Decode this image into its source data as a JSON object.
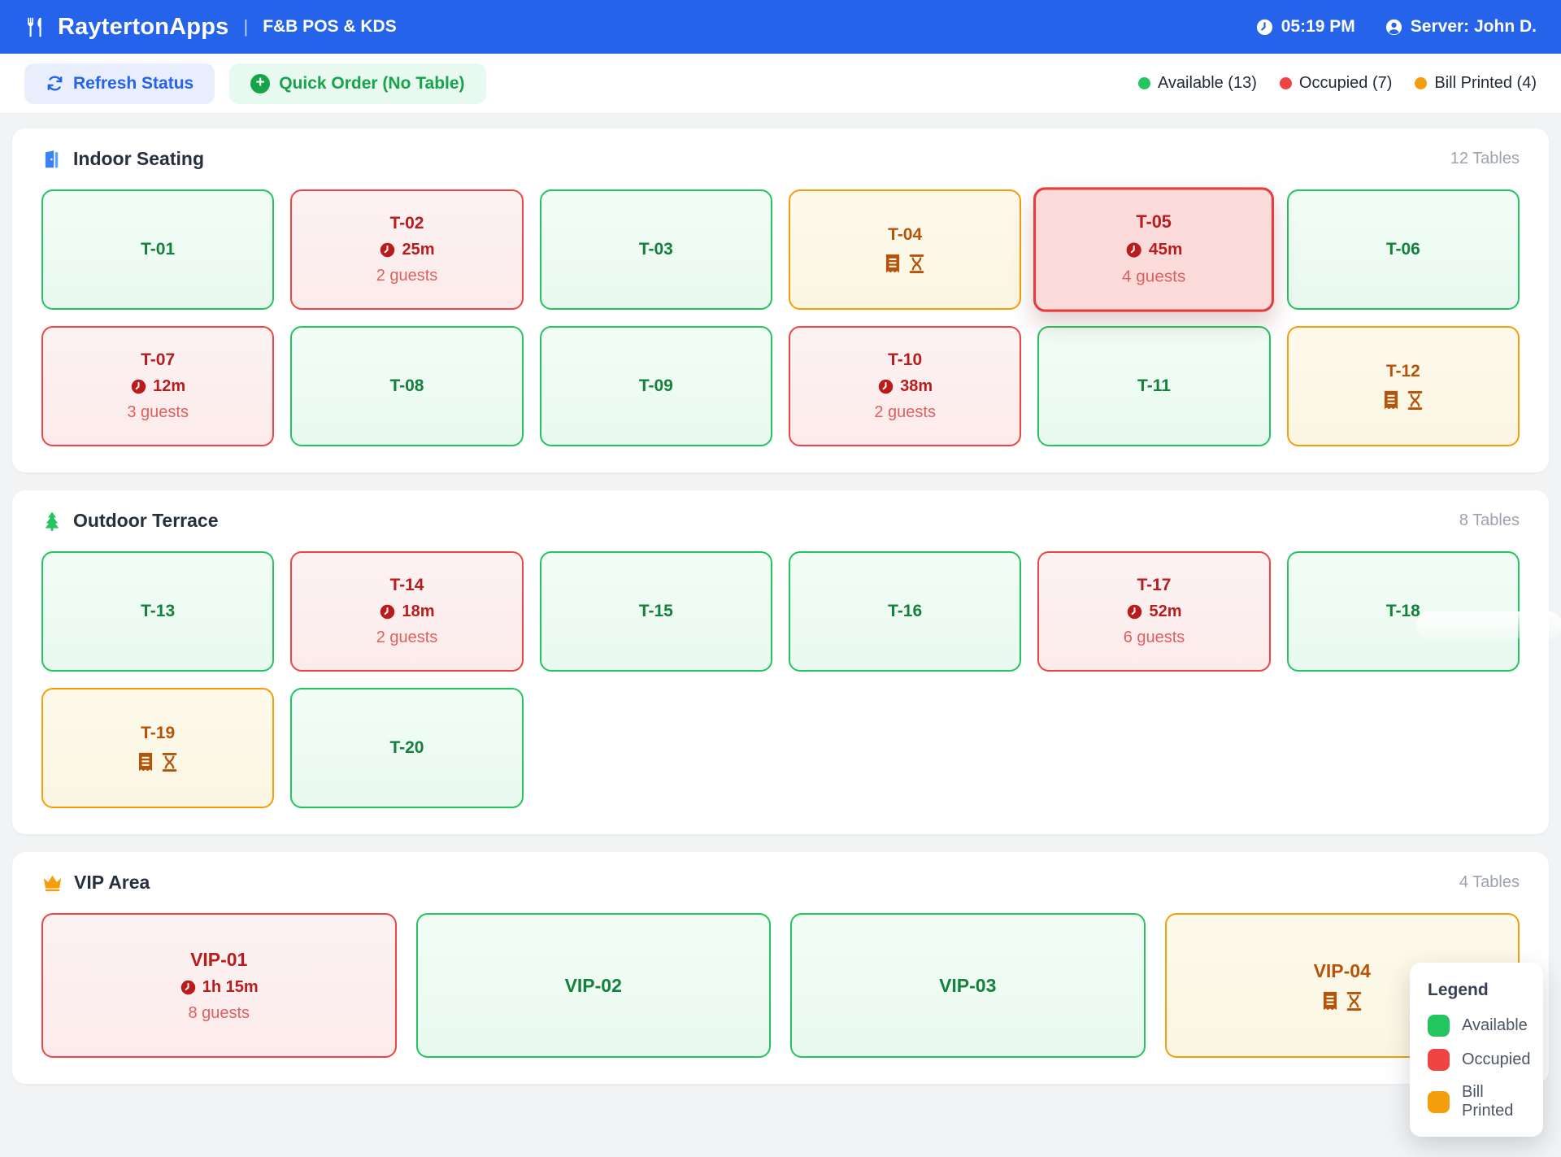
{
  "header": {
    "brand": "RaytertonApps",
    "separator": "|",
    "subtitle": "F&B POS & KDS",
    "time": "05:19 PM",
    "server": "Server: John D."
  },
  "toolbar": {
    "refresh_label": "Refresh Status",
    "quick_order_label": "Quick Order (No Table)",
    "status_legend": [
      {
        "label": "Available (13)",
        "color": "#22c55e"
      },
      {
        "label": "Occupied (7)",
        "color": "#ef4444"
      },
      {
        "label": "Bill Printed (4)",
        "color": "#f59e0b"
      }
    ]
  },
  "sections": [
    {
      "title": "Indoor Seating",
      "icon": "door-icon",
      "count": "12 Tables",
      "tables": [
        {
          "id": "T-01",
          "status": "available"
        },
        {
          "id": "T-02",
          "status": "occupied",
          "time": "25m",
          "guests": "2 guests"
        },
        {
          "id": "T-03",
          "status": "available"
        },
        {
          "id": "T-04",
          "status": "bill"
        },
        {
          "id": "T-05",
          "status": "occupied",
          "time": "45m",
          "guests": "4 guests",
          "selected": true
        },
        {
          "id": "T-06",
          "status": "available"
        },
        {
          "id": "T-07",
          "status": "occupied",
          "time": "12m",
          "guests": "3 guests"
        },
        {
          "id": "T-08",
          "status": "available"
        },
        {
          "id": "T-09",
          "status": "available"
        },
        {
          "id": "T-10",
          "status": "occupied",
          "time": "38m",
          "guests": "2 guests"
        },
        {
          "id": "T-11",
          "status": "available"
        },
        {
          "id": "T-12",
          "status": "bill"
        }
      ]
    },
    {
      "title": "Outdoor Terrace",
      "icon": "tree-icon",
      "count": "8 Tables",
      "tables": [
        {
          "id": "T-13",
          "status": "available"
        },
        {
          "id": "T-14",
          "status": "occupied",
          "time": "18m",
          "guests": "2 guests"
        },
        {
          "id": "T-15",
          "status": "available"
        },
        {
          "id": "T-16",
          "status": "available"
        },
        {
          "id": "T-17",
          "status": "occupied",
          "time": "52m",
          "guests": "6 guests"
        },
        {
          "id": "T-18",
          "status": "available"
        },
        {
          "id": "T-19",
          "status": "bill"
        },
        {
          "id": "T-20",
          "status": "available"
        }
      ]
    },
    {
      "title": "VIP Area",
      "icon": "crown-icon",
      "count": "4 Tables",
      "tables": [
        {
          "id": "VIP-01",
          "status": "occupied",
          "time": "1h 15m",
          "guests": "8 guests"
        },
        {
          "id": "VIP-02",
          "status": "available"
        },
        {
          "id": "VIP-03",
          "status": "available"
        },
        {
          "id": "VIP-04",
          "status": "bill"
        }
      ]
    }
  ],
  "legend_panel": {
    "title": "Legend",
    "items": [
      {
        "label": "Available",
        "color": "#22c55e"
      },
      {
        "label": "Occupied",
        "color": "#ef4444"
      },
      {
        "label": "Bill Printed",
        "color": "#f59e0b"
      }
    ]
  },
  "colors": {
    "header_blue": "#2563eb",
    "available": "#22c55e",
    "occupied": "#ef4444",
    "bill_printed": "#f59e0b"
  }
}
